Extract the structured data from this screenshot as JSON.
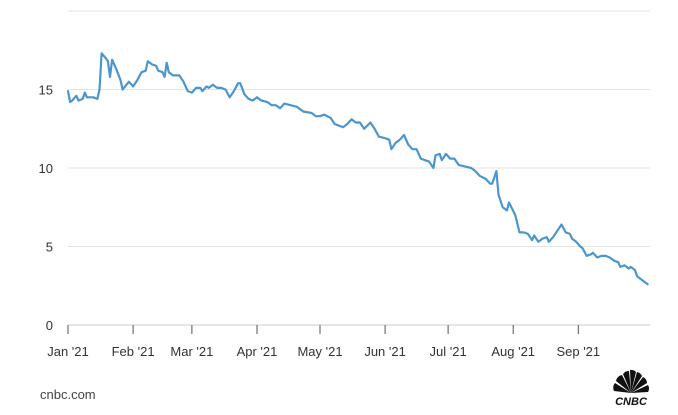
{
  "chart_data": {
    "type": "line",
    "title": "",
    "xlabel": "",
    "ylabel": "",
    "ylim": [
      0,
      20
    ],
    "yticks": [
      {
        "value": 0,
        "label": "0"
      },
      {
        "value": 5,
        "label": "5"
      },
      {
        "value": 10,
        "label": "10"
      },
      {
        "value": 15,
        "label": "15"
      }
    ],
    "xlim": [
      "2021-01-01",
      "2021-09-24"
    ],
    "xticks": [
      {
        "date": "2021-01-01",
        "label": "Jan '21"
      },
      {
        "date": "2021-02-01",
        "label": "Feb '21"
      },
      {
        "date": "2021-03-01",
        "label": "Mar '21"
      },
      {
        "date": "2021-04-01",
        "label": "Apr '21"
      },
      {
        "date": "2021-05-01",
        "label": "May '21"
      },
      {
        "date": "2021-06-01",
        "label": "Jun '21"
      },
      {
        "date": "2021-07-01",
        "label": "Jul '21"
      },
      {
        "date": "2021-08-01",
        "label": "Aug '21"
      },
      {
        "date": "2021-09-01",
        "label": "Sep '21"
      }
    ],
    "grid": "horizontal",
    "line_color": "#4a96cf",
    "series": [
      {
        "points": [
          [
            "2021-01-01",
            14.9
          ],
          [
            "2021-01-02",
            14.2
          ],
          [
            "2021-01-03",
            14.3
          ],
          [
            "2021-01-05",
            14.6
          ],
          [
            "2021-01-06",
            14.3
          ],
          [
            "2021-01-08",
            14.4
          ],
          [
            "2021-01-09",
            14.8
          ],
          [
            "2021-01-10",
            14.5
          ],
          [
            "2021-01-13",
            14.5
          ],
          [
            "2021-01-15",
            14.4
          ],
          [
            "2021-01-16",
            15.0
          ],
          [
            "2021-01-17",
            17.3
          ],
          [
            "2021-01-19",
            17.0
          ],
          [
            "2021-01-20",
            16.8
          ],
          [
            "2021-01-21",
            15.8
          ],
          [
            "2021-01-22",
            16.9
          ],
          [
            "2021-01-24",
            16.3
          ],
          [
            "2021-01-26",
            15.6
          ],
          [
            "2021-01-27",
            15.0
          ],
          [
            "2021-01-30",
            15.5
          ],
          [
            "2021-02-01",
            15.2
          ],
          [
            "2021-02-03",
            15.6
          ],
          [
            "2021-02-05",
            16.1
          ],
          [
            "2021-02-07",
            16.2
          ],
          [
            "2021-02-08",
            16.8
          ],
          [
            "2021-02-10",
            16.6
          ],
          [
            "2021-02-12",
            16.5
          ],
          [
            "2021-02-13",
            16.2
          ],
          [
            "2021-02-15",
            16.1
          ],
          [
            "2021-02-16",
            15.8
          ],
          [
            "2021-02-17",
            16.7
          ],
          [
            "2021-02-18",
            16.1
          ],
          [
            "2021-02-20",
            15.9
          ],
          [
            "2021-02-23",
            15.9
          ],
          [
            "2021-02-25",
            15.5
          ],
          [
            "2021-02-27",
            14.9
          ],
          [
            "2021-03-01",
            14.8
          ],
          [
            "2021-03-03",
            15.1
          ],
          [
            "2021-03-05",
            15.1
          ],
          [
            "2021-03-06",
            14.9
          ],
          [
            "2021-03-08",
            15.2
          ],
          [
            "2021-03-09",
            15.1
          ],
          [
            "2021-03-11",
            15.3
          ],
          [
            "2021-03-13",
            15.1
          ],
          [
            "2021-03-15",
            15.1
          ],
          [
            "2021-03-17",
            15.0
          ],
          [
            "2021-03-19",
            14.5
          ],
          [
            "2021-03-21",
            14.9
          ],
          [
            "2021-03-23",
            15.4
          ],
          [
            "2021-03-24",
            15.4
          ],
          [
            "2021-03-26",
            14.7
          ],
          [
            "2021-03-28",
            14.4
          ],
          [
            "2021-03-30",
            14.3
          ],
          [
            "2021-04-01",
            14.5
          ],
          [
            "2021-04-03",
            14.3
          ],
          [
            "2021-04-06",
            14.2
          ],
          [
            "2021-04-08",
            14.0
          ],
          [
            "2021-04-10",
            14.0
          ],
          [
            "2021-04-12",
            13.8
          ],
          [
            "2021-04-14",
            14.1
          ],
          [
            "2021-04-17",
            14.0
          ],
          [
            "2021-04-20",
            13.9
          ],
          [
            "2021-04-23",
            13.6
          ],
          [
            "2021-04-27",
            13.5
          ],
          [
            "2021-04-29",
            13.3
          ],
          [
            "2021-05-01",
            13.3
          ],
          [
            "2021-05-03",
            13.4
          ],
          [
            "2021-05-06",
            13.2
          ],
          [
            "2021-05-08",
            12.8
          ],
          [
            "2021-05-10",
            12.7
          ],
          [
            "2021-05-12",
            12.6
          ],
          [
            "2021-05-14",
            12.8
          ],
          [
            "2021-05-16",
            13.1
          ],
          [
            "2021-05-18",
            12.9
          ],
          [
            "2021-05-20",
            12.9
          ],
          [
            "2021-05-22",
            12.5
          ],
          [
            "2021-05-25",
            12.9
          ],
          [
            "2021-05-27",
            12.5
          ],
          [
            "2021-05-29",
            12.0
          ],
          [
            "2021-06-01",
            11.9
          ],
          [
            "2021-06-03",
            11.8
          ],
          [
            "2021-06-04",
            11.2
          ],
          [
            "2021-06-06",
            11.6
          ],
          [
            "2021-06-08",
            11.8
          ],
          [
            "2021-06-10",
            12.1
          ],
          [
            "2021-06-12",
            11.5
          ],
          [
            "2021-06-14",
            11.2
          ],
          [
            "2021-06-16",
            11.2
          ],
          [
            "2021-06-18",
            10.6
          ],
          [
            "2021-06-20",
            10.5
          ],
          [
            "2021-06-22",
            10.4
          ],
          [
            "2021-06-24",
            10.0
          ],
          [
            "2021-06-25",
            10.8
          ],
          [
            "2021-06-27",
            10.9
          ],
          [
            "2021-06-28",
            10.5
          ],
          [
            "2021-06-30",
            10.9
          ],
          [
            "2021-07-02",
            10.6
          ],
          [
            "2021-07-04",
            10.6
          ],
          [
            "2021-07-06",
            10.2
          ],
          [
            "2021-07-09",
            10.1
          ],
          [
            "2021-07-12",
            10.0
          ],
          [
            "2021-07-14",
            9.8
          ],
          [
            "2021-07-16",
            9.5
          ],
          [
            "2021-07-19",
            9.3
          ],
          [
            "2021-07-21",
            9.0
          ],
          [
            "2021-07-22",
            9.0
          ],
          [
            "2021-07-24",
            9.8
          ],
          [
            "2021-07-25",
            8.3
          ],
          [
            "2021-07-27",
            7.5
          ],
          [
            "2021-07-29",
            7.3
          ],
          [
            "2021-07-30",
            7.8
          ],
          [
            "2021-08-02",
            7.0
          ],
          [
            "2021-08-04",
            5.9
          ],
          [
            "2021-08-06",
            5.9
          ],
          [
            "2021-08-08",
            5.8
          ],
          [
            "2021-08-10",
            5.4
          ],
          [
            "2021-08-11",
            5.7
          ],
          [
            "2021-08-13",
            5.3
          ],
          [
            "2021-08-15",
            5.5
          ],
          [
            "2021-08-17",
            5.6
          ],
          [
            "2021-08-18",
            5.3
          ],
          [
            "2021-08-20",
            5.6
          ],
          [
            "2021-08-22",
            6.0
          ],
          [
            "2021-08-24",
            6.4
          ],
          [
            "2021-08-26",
            5.9
          ],
          [
            "2021-08-28",
            5.8
          ],
          [
            "2021-08-29",
            5.5
          ],
          [
            "2021-08-31",
            5.3
          ],
          [
            "2021-09-02",
            5.0
          ],
          [
            "2021-09-03",
            4.9
          ],
          [
            "2021-09-05",
            4.4
          ],
          [
            "2021-09-07",
            4.5
          ],
          [
            "2021-09-08",
            4.6
          ],
          [
            "2021-09-10",
            4.3
          ],
          [
            "2021-09-12",
            4.4
          ],
          [
            "2021-09-14",
            4.4
          ],
          [
            "2021-09-16",
            4.3
          ],
          [
            "2021-09-18",
            4.1
          ],
          [
            "2021-09-20",
            4.0
          ],
          [
            "2021-09-21",
            3.7
          ],
          [
            "2021-09-23",
            3.8
          ],
          [
            "2021-09-25",
            3.6
          ],
          [
            "2021-09-26",
            3.7
          ],
          [
            "2021-09-28",
            3.5
          ],
          [
            "2021-09-29",
            3.1
          ],
          [
            "2021-10-01",
            2.9
          ],
          [
            "2021-10-03",
            2.7
          ],
          [
            "2021-10-04",
            2.6
          ]
        ]
      }
    ]
  },
  "footer": {
    "source": "cnbc.com",
    "logo_text": "CNBC"
  }
}
